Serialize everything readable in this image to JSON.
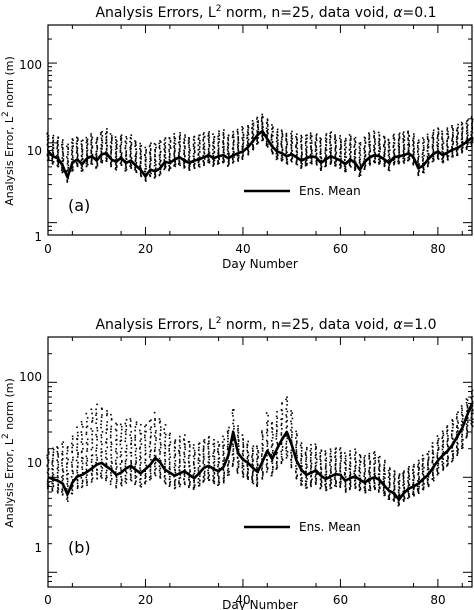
{
  "chart_data": [
    {
      "type": "scatter",
      "panel_tag": "(a)",
      "title": {
        "prefix": "Analysis Errors, L",
        "sup": "2",
        "suffix": " norm, n=25, data void, ",
        "alpha_symbol": "α",
        "alpha_value": "=0.1"
      },
      "xlabel": "Day Number",
      "ylabel": {
        "prefix": "Analysis Error, L",
        "sup": "2",
        "suffix": " norm (m)"
      },
      "xlim": [
        0,
        87
      ],
      "ylim": [
        0.7,
        300
      ],
      "yscale": "log",
      "xticks": [
        "0",
        "20",
        "40",
        "60",
        "80"
      ],
      "yticks": [
        "1",
        "10",
        "100"
      ],
      "grid": false,
      "legend": {
        "label": "Ens. Mean",
        "position": "lower-middle"
      },
      "series": [
        {
          "name": "Ens. Mean",
          "style": "thick-line",
          "x": [
            0,
            1,
            2,
            3,
            4,
            5,
            6,
            7,
            8,
            9,
            10,
            11,
            12,
            13,
            14,
            15,
            16,
            17,
            18,
            19,
            20,
            21,
            22,
            23,
            24,
            25,
            26,
            27,
            28,
            29,
            30,
            31,
            32,
            33,
            34,
            35,
            36,
            37,
            38,
            39,
            40,
            41,
            42,
            43,
            44,
            45,
            46,
            47,
            48,
            49,
            50,
            51,
            52,
            53,
            54,
            55,
            56,
            57,
            58,
            59,
            60,
            61,
            62,
            63,
            64,
            65,
            66,
            67,
            68,
            69,
            70,
            71,
            72,
            73,
            74,
            75,
            76,
            77,
            78,
            79,
            80,
            81,
            82,
            83,
            84,
            85,
            86,
            87
          ],
          "y": [
            7.8,
            6.8,
            6.4,
            5.2,
            3.7,
            5.6,
            6.2,
            5.4,
            6.4,
            6.8,
            6.0,
            7.2,
            7.4,
            6.2,
            5.8,
            6.5,
            5.6,
            6.0,
            5.2,
            4.6,
            3.8,
            4.6,
            4.4,
            4.8,
            5.8,
            5.6,
            6.2,
            6.6,
            6.0,
            5.6,
            6.0,
            6.2,
            6.6,
            7.0,
            6.4,
            6.8,
            7.0,
            6.4,
            7.0,
            7.4,
            7.8,
            8.8,
            10.4,
            12.6,
            14.0,
            11.2,
            9.0,
            7.8,
            7.4,
            6.8,
            7.2,
            6.6,
            6.0,
            6.4,
            6.8,
            6.6,
            5.6,
            6.2,
            6.8,
            6.4,
            6.0,
            5.4,
            6.2,
            5.6,
            4.6,
            5.8,
            6.6,
            7.0,
            6.8,
            6.2,
            5.6,
            6.6,
            6.8,
            7.0,
            7.4,
            6.6,
            4.8,
            5.2,
            6.2,
            7.2,
            7.8,
            7.0,
            7.6,
            8.2,
            8.6,
            9.4,
            10.4,
            11.6
          ]
        },
        {
          "name": "Ensemble members",
          "style": "dots",
          "x": [
            0,
            1,
            2,
            3,
            4,
            5,
            6,
            7,
            8,
            9,
            10,
            11,
            12,
            13,
            14,
            15,
            16,
            17,
            18,
            19,
            20,
            21,
            22,
            23,
            24,
            25,
            26,
            27,
            28,
            29,
            30,
            31,
            32,
            33,
            34,
            35,
            36,
            37,
            38,
            39,
            40,
            41,
            42,
            43,
            44,
            45,
            46,
            47,
            48,
            49,
            50,
            51,
            52,
            53,
            54,
            55,
            56,
            57,
            58,
            59,
            60,
            61,
            62,
            63,
            64,
            65,
            66,
            67,
            68,
            69,
            70,
            71,
            72,
            73,
            74,
            75,
            76,
            77,
            78,
            79,
            80,
            81,
            82,
            83,
            84,
            85,
            86,
            87
          ],
          "y_min": [
            6.0,
            5.4,
            5.0,
            4.2,
            3.2,
            4.4,
            5.0,
            4.4,
            5.0,
            5.4,
            4.8,
            5.6,
            5.8,
            5.0,
            4.6,
            5.2,
            4.4,
            4.8,
            4.2,
            3.8,
            3.3,
            3.8,
            3.6,
            3.9,
            4.6,
            4.5,
            5.0,
            5.2,
            4.8,
            4.5,
            4.8,
            5.0,
            5.2,
            5.6,
            5.1,
            5.4,
            5.6,
            5.1,
            5.6,
            5.9,
            6.2,
            7.0,
            8.2,
            9.6,
            10.6,
            8.8,
            7.2,
            6.2,
            5.9,
            5.4,
            5.8,
            5.3,
            4.8,
            5.1,
            5.4,
            5.3,
            4.5,
            5.0,
            5.4,
            5.1,
            4.8,
            4.3,
            5.0,
            4.5,
            3.8,
            4.6,
            5.3,
            5.6,
            5.4,
            5.0,
            4.5,
            5.3,
            5.4,
            5.6,
            5.9,
            5.3,
            3.9,
            4.2,
            5.0,
            5.8,
            6.2,
            5.6,
            6.1,
            6.6,
            6.9,
            7.5,
            8.3,
            9.3
          ],
          "y_max": [
            13.5,
            12.5,
            12.0,
            11.0,
            10.0,
            11.5,
            12.0,
            11.0,
            12.0,
            13.0,
            12.0,
            14.0,
            15.0,
            13.0,
            12.0,
            13.0,
            12.0,
            12.5,
            11.0,
            10.0,
            9.0,
            10.0,
            10.0,
            11.0,
            12.0,
            12.0,
            13.0,
            13.5,
            12.5,
            12.0,
            12.5,
            13.0,
            13.5,
            14.0,
            13.0,
            14.0,
            14.5,
            13.0,
            14.0,
            15.0,
            16.0,
            17.0,
            19.0,
            21.0,
            23.0,
            20.0,
            17.0,
            15.0,
            14.5,
            13.5,
            14.0,
            13.0,
            12.5,
            13.0,
            13.5,
            13.0,
            12.0,
            13.0,
            14.0,
            13.0,
            12.5,
            11.5,
            13.0,
            12.0,
            10.5,
            12.0,
            13.5,
            14.0,
            13.5,
            12.5,
            11.5,
            13.0,
            13.5,
            14.0,
            14.5,
            13.0,
            11.0,
            11.5,
            13.0,
            14.5,
            15.5,
            14.0,
            15.5,
            16.5,
            17.0,
            18.5,
            20.0,
            22.0
          ]
        }
      ]
    },
    {
      "type": "scatter",
      "panel_tag": "(b)",
      "title": {
        "prefix": "Analysis Errors, L",
        "sup": "2",
        "suffix": " norm, n=25, data void, ",
        "alpha_symbol": "α",
        "alpha_value": "=1.0"
      },
      "xlabel": "Day Number",
      "ylabel": {
        "prefix": "Analysis Error, L",
        "sup": "2",
        "suffix": " norm (m)"
      },
      "xlim": [
        0,
        87
      ],
      "ylim": [
        0.7,
        300
      ],
      "yscale": "log",
      "xticks": [
        "0",
        "20",
        "40",
        "60",
        "80"
      ],
      "yticks": [
        "1",
        "10",
        "100"
      ],
      "grid": false,
      "legend": {
        "label": "Ens. Mean",
        "position": "lower-middle"
      },
      "series": [
        {
          "name": "Ens. Mean",
          "style": "thick-line",
          "x": [
            0,
            1,
            2,
            3,
            4,
            5,
            6,
            7,
            8,
            9,
            10,
            11,
            12,
            13,
            14,
            15,
            16,
            17,
            18,
            19,
            20,
            21,
            22,
            23,
            24,
            25,
            26,
            27,
            28,
            29,
            30,
            31,
            32,
            33,
            34,
            35,
            36,
            37,
            38,
            39,
            40,
            41,
            42,
            43,
            44,
            45,
            46,
            47,
            48,
            49,
            50,
            51,
            52,
            53,
            54,
            55,
            56,
            57,
            58,
            59,
            60,
            61,
            62,
            63,
            64,
            65,
            66,
            67,
            68,
            69,
            70,
            71,
            72,
            73,
            74,
            75,
            76,
            77,
            78,
            79,
            80,
            81,
            82,
            83,
            84,
            85,
            86,
            87
          ],
          "y": [
            10.0,
            9.6,
            9.2,
            8.6,
            6.6,
            8.8,
            10.2,
            10.6,
            11.4,
            12.4,
            13.6,
            14.2,
            13.0,
            12.0,
            10.6,
            11.2,
            12.4,
            13.2,
            12.0,
            11.0,
            12.2,
            13.6,
            16.0,
            14.4,
            12.0,
            11.2,
            10.4,
            11.0,
            11.6,
            10.6,
            9.8,
            11.0,
            12.6,
            13.2,
            12.2,
            11.6,
            12.8,
            17.0,
            30.0,
            18.0,
            15.4,
            14.2,
            12.6,
            11.4,
            14.6,
            19.0,
            15.6,
            20.0,
            25.0,
            30.0,
            22.0,
            15.0,
            12.0,
            10.6,
            11.2,
            11.8,
            10.4,
            9.6,
            10.2,
            10.8,
            10.6,
            9.2,
            9.8,
            10.2,
            9.4,
            8.8,
            9.6,
            10.0,
            9.4,
            8.2,
            7.2,
            6.8,
            5.8,
            6.8,
            7.6,
            8.0,
            8.6,
            9.6,
            10.6,
            12.6,
            15.0,
            17.0,
            19.0,
            22.0,
            27.0,
            33.0,
            45.0,
            60.0
          ]
        },
        {
          "name": "Ensemble members",
          "style": "dots",
          "x": [
            0,
            1,
            2,
            3,
            4,
            5,
            6,
            7,
            8,
            9,
            10,
            11,
            12,
            13,
            14,
            15,
            16,
            17,
            18,
            19,
            20,
            21,
            22,
            23,
            24,
            25,
            26,
            27,
            28,
            29,
            30,
            31,
            32,
            33,
            34,
            35,
            36,
            37,
            38,
            39,
            40,
            41,
            42,
            43,
            44,
            45,
            46,
            47,
            48,
            49,
            50,
            51,
            52,
            53,
            54,
            55,
            56,
            57,
            58,
            59,
            60,
            61,
            62,
            63,
            64,
            65,
            66,
            67,
            68,
            69,
            70,
            71,
            72,
            73,
            74,
            75,
            76,
            77,
            78,
            79,
            80,
            81,
            82,
            83,
            84,
            85,
            86,
            87
          ],
          "y_min": [
            7.6,
            7.2,
            6.8,
            6.4,
            5.6,
            6.6,
            7.6,
            7.8,
            8.2,
            8.8,
            9.4,
            9.6,
            9.0,
            8.4,
            7.8,
            8.0,
            8.6,
            9.0,
            8.4,
            7.8,
            8.4,
            9.2,
            10.4,
            9.6,
            8.4,
            8.0,
            7.6,
            8.0,
            8.4,
            7.8,
            7.4,
            8.0,
            8.8,
            9.2,
            8.6,
            8.2,
            8.8,
            10.4,
            13.0,
            11.0,
            10.0,
            9.4,
            8.6,
            8.0,
            9.6,
            11.4,
            10.2,
            12.0,
            14.0,
            16.0,
            12.6,
            9.6,
            8.2,
            7.6,
            8.0,
            8.4,
            7.6,
            7.2,
            7.6,
            8.0,
            7.8,
            7.0,
            7.4,
            7.6,
            7.2,
            6.8,
            7.2,
            7.4,
            7.0,
            6.4,
            5.8,
            5.6,
            5.0,
            5.6,
            6.0,
            6.4,
            6.8,
            7.4,
            8.0,
            9.2,
            10.6,
            11.8,
            13.0,
            14.6,
            17.0,
            20.0,
            26.0,
            34.0
          ],
          "y_max": [
            20.0,
            21.0,
            22.0,
            24.0,
            22.0,
            28.0,
            34.0,
            40.0,
            48.0,
            55.0,
            60.0,
            58.0,
            54.0,
            48.0,
            40.0,
            38.0,
            42.0,
            44.0,
            40.0,
            36.0,
            38.0,
            42.0,
            48.0,
            44.0,
            36.0,
            30.0,
            26.0,
            27.0,
            28.0,
            25.0,
            22.0,
            24.0,
            26.0,
            28.0,
            25.0,
            24.0,
            27.0,
            35.0,
            55.0,
            36.0,
            28.0,
            24.0,
            22.0,
            22.0,
            32.0,
            48.0,
            40.0,
            50.0,
            64.0,
            75.0,
            52.0,
            32.0,
            24.0,
            21.0,
            22.0,
            23.0,
            20.0,
            19.0,
            20.0,
            21.0,
            21.0,
            18.0,
            19.0,
            20.0,
            18.0,
            17.0,
            18.0,
            19.0,
            17.0,
            15.0,
            13.0,
            12.0,
            11.0,
            12.0,
            13.0,
            14.0,
            15.0,
            17.0,
            19.0,
            23.0,
            28.0,
            32.0,
            36.0,
            42.0,
            50.0,
            58.0,
            70.0,
            85.0
          ]
        }
      ]
    }
  ]
}
